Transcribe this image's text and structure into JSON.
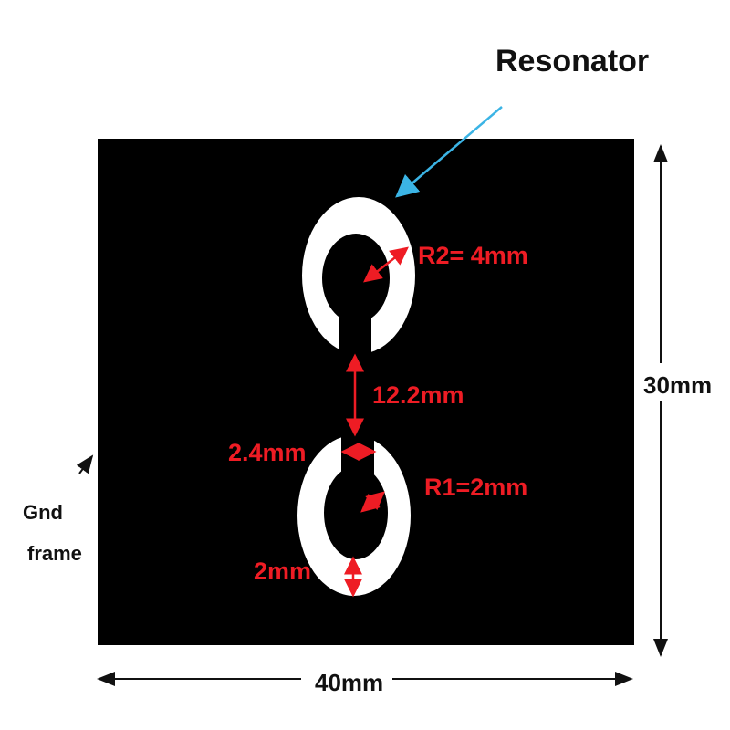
{
  "labels": {
    "resonator": "Resonator",
    "r2": "R2= 4mm",
    "gap": "12.2mm",
    "slot_width": "2.4mm",
    "r1": "R1=2mm",
    "ring_width": "2mm",
    "height": "30mm",
    "width": "40mm",
    "gnd_line1": "Gnd",
    "gnd_line2": "frame"
  },
  "colors": {
    "substrate": "#000000",
    "metal": "#ffffff",
    "dimension": "#ee1c24",
    "pointer": "#3bb4e5"
  }
}
